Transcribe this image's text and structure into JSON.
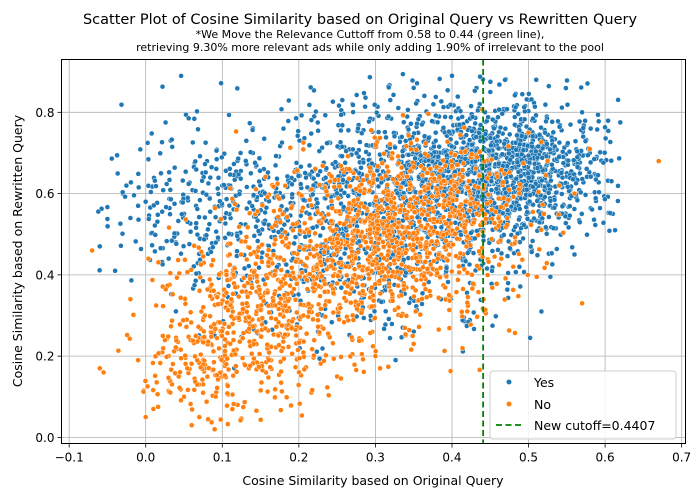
{
  "chart_data": {
    "type": "scatter",
    "title": "Scatter Plot of Cosine Similarity based on Original Query vs Rewritten Query",
    "subtitle_lines": [
      "*We Move the Relevance Cuttoff from 0.58 to 0.44 (green line),",
      "retrieving 9.30% more relevant ads while only adding 1.90% of irrelevant to the pool"
    ],
    "xlabel": "Cosine Similarity based on Original Query",
    "ylabel": "Cosine Similarity based on Rewritten Query",
    "xlim": [
      -0.11,
      0.705
    ],
    "ylim": [
      -0.015,
      0.93
    ],
    "xticks": [
      -0.1,
      0.0,
      0.1,
      0.2,
      0.3,
      0.4,
      0.5,
      0.6,
      0.7
    ],
    "xtick_labels": [
      "−0.1",
      "0.0",
      "0.1",
      "0.2",
      "0.3",
      "0.4",
      "0.5",
      "0.6",
      "0.7"
    ],
    "yticks": [
      0.0,
      0.2,
      0.4,
      0.6,
      0.8
    ],
    "ytick_labels": [
      "0.0",
      "0.2",
      "0.4",
      "0.6",
      "0.8"
    ],
    "grid": true,
    "legend_position": "bottom-right",
    "cutoff": {
      "x": 0.4407,
      "label": "New cutoff=0.4407",
      "color": "#008000",
      "style": "dashed"
    },
    "series": [
      {
        "name": "Yes",
        "color": "#1f77b4",
        "points": [
          [
            -0.06,
            0.47
          ],
          [
            -0.05,
            0.52
          ],
          [
            -0.04,
            0.41
          ],
          [
            -0.03,
            0.6
          ],
          [
            -0.02,
            0.54
          ],
          [
            -0.01,
            0.57
          ],
          [
            0.0,
            0.58
          ],
          [
            0.02,
            0.65
          ],
          [
            0.03,
            0.44
          ],
          [
            0.05,
            0.55
          ],
          [
            0.08,
            0.68
          ],
          [
            0.1,
            0.62
          ],
          [
            0.12,
            0.57
          ],
          [
            0.14,
            0.7
          ],
          [
            0.16,
            0.64
          ],
          [
            0.18,
            0.76
          ],
          [
            0.2,
            0.53
          ],
          [
            0.22,
            0.79
          ],
          [
            0.25,
            0.47
          ],
          [
            0.27,
            0.82
          ],
          [
            0.3,
            0.72
          ],
          [
            0.32,
            0.45
          ],
          [
            0.35,
            0.86
          ],
          [
            0.36,
            0.62
          ],
          [
            0.38,
            0.55
          ],
          [
            0.4,
            0.89
          ],
          [
            0.42,
            0.65
          ],
          [
            0.43,
            0.71
          ],
          [
            0.45,
            0.85
          ],
          [
            0.46,
            0.6
          ],
          [
            0.48,
            0.7
          ],
          [
            0.49,
            0.78
          ],
          [
            0.5,
            0.64
          ],
          [
            0.51,
            0.88
          ],
          [
            0.52,
            0.57
          ],
          [
            0.53,
            0.74
          ],
          [
            0.55,
            0.65
          ],
          [
            0.56,
            0.45
          ],
          [
            0.57,
            0.8
          ],
          [
            0.58,
            0.7
          ],
          [
            0.61,
            0.55
          ]
        ],
        "clusters": [
          {
            "cx": 0.47,
            "cy": 0.665,
            "sx": 0.07,
            "sy": 0.08,
            "n": 1050
          },
          {
            "cx": 0.36,
            "cy": 0.6,
            "sx": 0.09,
            "sy": 0.12,
            "n": 750
          },
          {
            "cx": 0.2,
            "cy": 0.57,
            "sx": 0.1,
            "sy": 0.13,
            "n": 450
          },
          {
            "cx": 0.07,
            "cy": 0.58,
            "sx": 0.06,
            "sy": 0.09,
            "n": 130
          },
          {
            "cx": 0.3,
            "cy": 0.4,
            "sx": 0.1,
            "sy": 0.1,
            "n": 170
          }
        ],
        "x_range": [
          -0.07,
          0.62
        ],
        "y_range": [
          0.1,
          0.895
        ]
      },
      {
        "name": "No",
        "color": "#ff7f0e",
        "points": [
          [
            -0.07,
            0.46
          ],
          [
            -0.06,
            0.17
          ],
          [
            -0.055,
            0.16
          ],
          [
            -0.02,
            0.34
          ],
          [
            -0.01,
            0.19
          ],
          [
            0.0,
            0.14
          ],
          [
            0.0,
            0.05
          ],
          [
            0.01,
            0.07
          ],
          [
            0.03,
            0.2
          ],
          [
            0.05,
            0.1
          ],
          [
            0.06,
            0.03
          ],
          [
            0.07,
            0.05
          ],
          [
            0.09,
            0.02
          ],
          [
            0.12,
            0.08
          ],
          [
            0.15,
            0.25
          ],
          [
            0.18,
            0.31
          ],
          [
            0.2,
            0.6
          ],
          [
            0.22,
            0.38
          ],
          [
            0.25,
            0.15
          ],
          [
            0.28,
            0.42
          ],
          [
            0.3,
            0.2
          ],
          [
            0.32,
            0.36
          ],
          [
            0.35,
            0.23
          ],
          [
            0.38,
            0.4
          ],
          [
            0.4,
            0.5
          ],
          [
            0.42,
            0.31
          ],
          [
            0.45,
            0.58
          ],
          [
            0.48,
            0.42
          ],
          [
            0.5,
            0.75
          ],
          [
            0.52,
            0.55
          ],
          [
            0.54,
            0.62
          ],
          [
            0.56,
            0.6
          ],
          [
            0.57,
            0.33
          ],
          [
            0.58,
            0.71
          ],
          [
            0.67,
            0.68
          ]
        ],
        "clusters": [
          {
            "cx": 0.3,
            "cy": 0.46,
            "sx": 0.08,
            "sy": 0.1,
            "n": 800
          },
          {
            "cx": 0.15,
            "cy": 0.3,
            "sx": 0.06,
            "sy": 0.1,
            "n": 450
          },
          {
            "cx": 0.38,
            "cy": 0.58,
            "sx": 0.07,
            "sy": 0.08,
            "n": 300
          },
          {
            "cx": 0.07,
            "cy": 0.17,
            "sx": 0.04,
            "sy": 0.08,
            "n": 140
          }
        ],
        "x_range": [
          -0.07,
          0.67
        ],
        "y_range": [
          0.025,
          0.82
        ]
      }
    ]
  }
}
